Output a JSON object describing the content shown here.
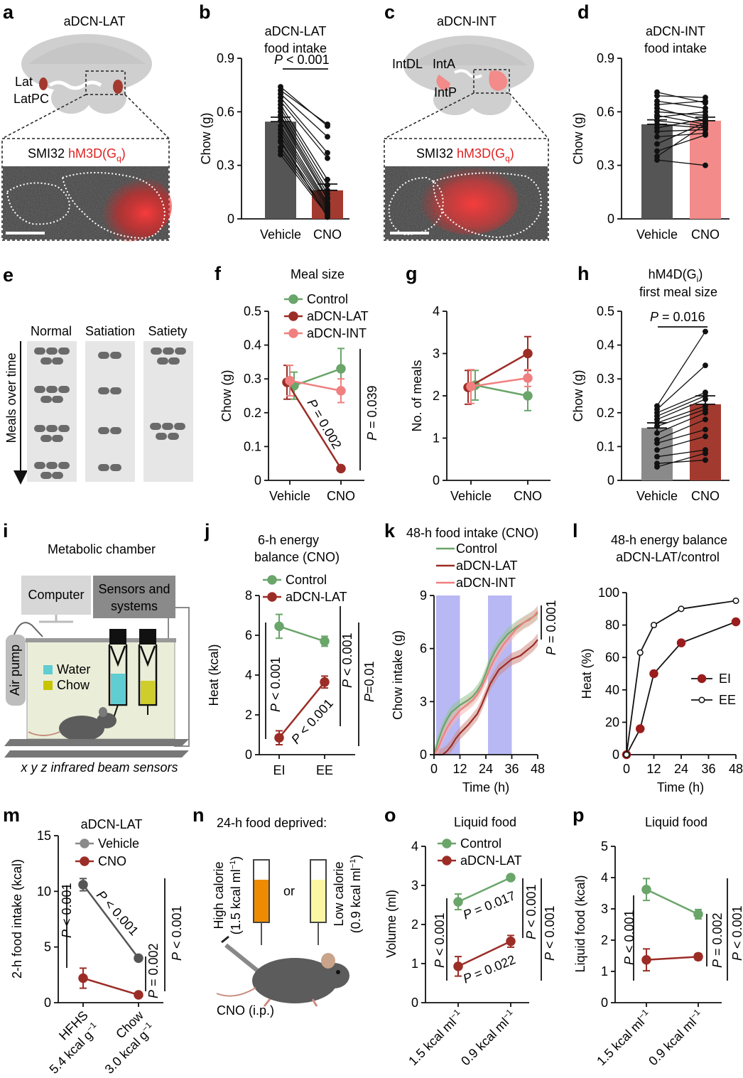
{
  "colors": {
    "vehicle": "#555555",
    "lat": "#a33a30",
    "int": "#f28b89",
    "control": "#6aa56a",
    "gray_bar": "#8a8a8a",
    "hm3d": "#e02020",
    "dark_line": "#9b2d26",
    "pink_line": "#f08080",
    "water": "#5fcdd2",
    "chow_box": "#c8c400",
    "beam_bg": "#eaeed8",
    "night": "#b8b8f4",
    "or": "#ef8b00"
  },
  "panels": {
    "a": {
      "letter": "a",
      "title": "aDCN-LAT",
      "lat": "Lat",
      "latpc": "LatPC",
      "stain1": "SMI32",
      "stain2": "hM3D(G",
      "stain_sub": "q",
      "stain3": ")"
    },
    "c": {
      "letter": "c",
      "title": "aDCN-INT",
      "intdl": "IntDL",
      "inta": "IntA",
      "intp": "IntP",
      "stain1": "SMI32",
      "stain2": "hM3D(G",
      "stain_sub": "q",
      "stain3": ")"
    },
    "e": {
      "letter": "e",
      "col1": "Normal",
      "col2": "Satiation",
      "col3": "Satiety",
      "ylabel": "Meals over time"
    },
    "i": {
      "letter": "i",
      "title": "Metabolic chamber",
      "computer": "Computer",
      "sensors1": "Sensors and",
      "sensors2": "systems",
      "pump": "Air pump",
      "water": "Water",
      "chow": "Chow",
      "beams": "x y z infrared beam sensors"
    },
    "n": {
      "letter": "n",
      "title": "24-h food deprived:",
      "high1": "High calorie",
      "high2": "(1.5 kcal ml",
      "low1": "Low calorie",
      "low2": "(0.9 kcal ml",
      "unit_sup": "−1",
      "close": ")",
      "or": "or",
      "cno": "CNO (i.p.)"
    }
  },
  "chart_data": [
    {
      "id": "b",
      "letter": "b",
      "type": "bar",
      "title": [
        "aDCN-LAT",
        "food intake"
      ],
      "categories": [
        "Vehicle",
        "CNO"
      ],
      "values": [
        0.545,
        0.16
      ],
      "errors": [
        0.025,
        0.035
      ],
      "ylabel": "Chow (g)",
      "ylim": [
        0,
        0.9
      ],
      "yticks": [
        "0",
        "0.3",
        "0.6",
        "0.9"
      ],
      "p": "P < 0.001",
      "pairs": [
        [
          0.74,
          0.52
        ],
        [
          0.72,
          0.53
        ],
        [
          0.7,
          0.46
        ],
        [
          0.68,
          0.37
        ],
        [
          0.66,
          0.34
        ],
        [
          0.64,
          0.22
        ],
        [
          0.62,
          0.19
        ],
        [
          0.6,
          0.16
        ],
        [
          0.58,
          0.14
        ],
        [
          0.57,
          0.12
        ],
        [
          0.55,
          0.11
        ],
        [
          0.52,
          0.09
        ],
        [
          0.5,
          0.08
        ],
        [
          0.48,
          0.07
        ],
        [
          0.46,
          0.06
        ],
        [
          0.43,
          0.05
        ],
        [
          0.4,
          0.04
        ],
        [
          0.38,
          0.03
        ],
        [
          0.36,
          0.02
        ],
        [
          0.44,
          0.01
        ]
      ]
    },
    {
      "id": "d",
      "letter": "d",
      "type": "bar",
      "title": [
        "aDCN-INT",
        "food intake"
      ],
      "categories": [
        "Vehicle",
        "CNO"
      ],
      "values": [
        0.53,
        0.55
      ],
      "errors": [
        0.025,
        0.02
      ],
      "ylabel": "Chow (g)",
      "ylim": [
        0,
        0.9
      ],
      "yticks": [
        "0",
        "0.3",
        "0.6",
        "0.9"
      ],
      "pairs": [
        [
          0.71,
          0.65
        ],
        [
          0.69,
          0.68
        ],
        [
          0.66,
          0.62
        ],
        [
          0.64,
          0.66
        ],
        [
          0.62,
          0.55
        ],
        [
          0.6,
          0.58
        ],
        [
          0.58,
          0.53
        ],
        [
          0.57,
          0.6
        ],
        [
          0.55,
          0.52
        ],
        [
          0.53,
          0.51
        ],
        [
          0.51,
          0.56
        ],
        [
          0.49,
          0.5
        ],
        [
          0.46,
          0.48
        ],
        [
          0.42,
          0.54
        ],
        [
          0.38,
          0.47
        ],
        [
          0.35,
          0.53
        ],
        [
          0.33,
          0.3
        ]
      ]
    },
    {
      "id": "f",
      "letter": "f",
      "type": "line",
      "title": [
        "Meal size"
      ],
      "categories": [
        "Vehicle",
        "CNO"
      ],
      "ylabel": "Chow (g)",
      "ylim": [
        0,
        0.5
      ],
      "yticks": [
        "0",
        "0.1",
        "0.2",
        "0.3",
        "0.4",
        "0.5"
      ],
      "legend": [
        "Control",
        "aDCN-LAT",
        "aDCN-INT"
      ],
      "series": [
        {
          "name": "Control",
          "values": [
            0.28,
            0.33
          ],
          "errors": [
            0.04,
            0.06
          ]
        },
        {
          "name": "aDCN-LAT",
          "values": [
            0.29,
            0.035
          ],
          "errors": [
            0.05,
            0.005
          ]
        },
        {
          "name": "aDCN-INT",
          "values": [
            0.295,
            0.265
          ],
          "errors": [
            0.045,
            0.035
          ]
        }
      ],
      "p1": "P = 0.002",
      "p2": "P = 0.039"
    },
    {
      "id": "g",
      "letter": "g",
      "type": "line",
      "categories": [
        "Vehicle",
        "CNO"
      ],
      "ylabel": "No. of meals",
      "ylim": [
        0,
        4
      ],
      "yticks": [
        "0",
        "1",
        "2",
        "3",
        "4"
      ],
      "series": [
        {
          "name": "Control",
          "values": [
            2.25,
            2.0
          ],
          "errors": [
            0.35,
            0.35
          ]
        },
        {
          "name": "aDCN-LAT",
          "values": [
            2.2,
            3.0
          ],
          "errors": [
            0.4,
            0.4
          ]
        },
        {
          "name": "aDCN-INT",
          "values": [
            2.22,
            2.42
          ],
          "errors": [
            0.4,
            0.2
          ]
        }
      ]
    },
    {
      "id": "h",
      "letter": "h",
      "type": "bar",
      "title": [
        "hM4D(G",
        "first meal size"
      ],
      "title_sub": "i",
      "title_close": ")",
      "categories": [
        "Vehicle",
        "CNO"
      ],
      "values": [
        0.155,
        0.225
      ],
      "errors": [
        0.015,
        0.025
      ],
      "ylabel": "Chow (g)",
      "ylim": [
        0,
        0.5
      ],
      "yticks": [
        "0",
        "0.1",
        "0.2",
        "0.3",
        "0.4",
        "0.5"
      ],
      "p": "P = 0.016",
      "pairs": [
        [
          0.22,
          0.44
        ],
        [
          0.21,
          0.34
        ],
        [
          0.2,
          0.26
        ],
        [
          0.19,
          0.25
        ],
        [
          0.18,
          0.24
        ],
        [
          0.17,
          0.22
        ],
        [
          0.16,
          0.21
        ],
        [
          0.14,
          0.2
        ],
        [
          0.12,
          0.18
        ],
        [
          0.11,
          0.15
        ],
        [
          0.09,
          0.13
        ],
        [
          0.07,
          0.09
        ],
        [
          0.05,
          0.06
        ],
        [
          0.04,
          0.08
        ]
      ]
    },
    {
      "id": "j",
      "letter": "j",
      "type": "line",
      "title": [
        "6-h energy",
        "balance (CNO)"
      ],
      "categories": [
        "EI",
        "EE"
      ],
      "ylabel": "Heat (kcal)",
      "ylim": [
        0,
        8
      ],
      "yticks": [
        "0",
        "2",
        "4",
        "6",
        "8"
      ],
      "legend": [
        "Control",
        "aDCN-LAT"
      ],
      "series": [
        {
          "name": "Control",
          "values": [
            6.45,
            5.7
          ],
          "errors": [
            0.6,
            0.25
          ]
        },
        {
          "name": "aDCN-LAT",
          "values": [
            0.85,
            3.65
          ],
          "errors": [
            0.35,
            0.3
          ]
        }
      ],
      "p1": "P < 0.001",
      "p2": "P < 0.001",
      "p3": "P < 0.001",
      "p4": "P=0.01"
    },
    {
      "id": "k",
      "letter": "k",
      "type": "area",
      "title": [
        "48-h food intake (CNO)"
      ],
      "xlabel": "Time (h)",
      "ylabel": "Chow intake (g)",
      "xlim": [
        0,
        48
      ],
      "ylim": [
        0,
        9
      ],
      "xticks": [
        "0",
        "12",
        "24",
        "36",
        "48"
      ],
      "yticks": [
        "0",
        "3",
        "6",
        "9"
      ],
      "legend": [
        "Control",
        "aDCN-LAT",
        "aDCN-INT"
      ],
      "night_bands": [
        [
          1,
          12
        ],
        [
          25,
          36
        ]
      ],
      "p": "P = 0.001",
      "series": [
        {
          "name": "Control",
          "x": [
            0,
            2,
            4,
            6,
            8,
            10,
            12,
            14,
            16,
            18,
            20,
            22,
            24,
            26,
            28,
            30,
            32,
            34,
            36,
            38,
            40,
            42,
            44,
            46,
            48
          ],
          "values": [
            0,
            0.8,
            1.5,
            2.0,
            2.4,
            2.6,
            2.8,
            2.95,
            3.1,
            3.3,
            3.6,
            4.0,
            4.6,
            5.3,
            5.8,
            6.2,
            6.5,
            6.8,
            7.0,
            7.2,
            7.35,
            7.5,
            7.65,
            7.8,
            8.0
          ]
        },
        {
          "name": "aDCN-LAT",
          "x": [
            0,
            2,
            4,
            6,
            8,
            10,
            12,
            14,
            16,
            18,
            20,
            22,
            24,
            26,
            28,
            30,
            32,
            34,
            36,
            38,
            40,
            42,
            44,
            46,
            48
          ],
          "values": [
            0,
            0,
            0,
            0.2,
            0.5,
            0.9,
            1.2,
            1.45,
            1.7,
            2.0,
            2.3,
            2.8,
            3.4,
            4.0,
            4.4,
            4.8,
            5.0,
            5.2,
            5.4,
            5.5,
            5.6,
            5.8,
            6.0,
            6.2,
            6.5
          ]
        },
        {
          "name": "aDCN-INT",
          "x": [
            0,
            2,
            4,
            6,
            8,
            10,
            12,
            14,
            16,
            18,
            20,
            22,
            24,
            26,
            28,
            30,
            32,
            34,
            36,
            38,
            40,
            42,
            44,
            46,
            48
          ],
          "values": [
            0,
            0.4,
            1.0,
            1.5,
            1.9,
            2.2,
            2.5,
            2.7,
            2.9,
            3.1,
            3.4,
            3.8,
            4.3,
            4.9,
            5.4,
            5.8,
            6.2,
            6.5,
            6.8,
            7.1,
            7.3,
            7.5,
            7.6,
            7.8,
            8.1
          ]
        }
      ]
    },
    {
      "id": "l",
      "letter": "l",
      "type": "line",
      "title": [
        "48-h energy balance",
        "aDCN-LAT/control"
      ],
      "xlabel": "Time (h)",
      "ylabel": "Heat (%)",
      "xlim": [
        0,
        48
      ],
      "ylim": [
        0,
        100
      ],
      "xticks": [
        "0",
        "12",
        "24",
        "36",
        "48"
      ],
      "yticks": [
        "0",
        "20",
        "40",
        "60",
        "80",
        "100"
      ],
      "legend": [
        "EI",
        "EE"
      ],
      "series": [
        {
          "name": "EI",
          "x": [
            0,
            6,
            12,
            24,
            48
          ],
          "values": [
            0,
            16,
            50,
            69,
            82
          ]
        },
        {
          "name": "EE",
          "x": [
            0,
            6,
            12,
            24,
            48
          ],
          "values": [
            0,
            63,
            80,
            90,
            95
          ]
        }
      ]
    },
    {
      "id": "m",
      "letter": "m",
      "type": "line",
      "title": [
        "aDCN-LAT"
      ],
      "categories": [
        "HFHS",
        "Chow"
      ],
      "cat_units": [
        "5.4 kcal g",
        "3.0 kcal g"
      ],
      "unit_sup": "−1",
      "ylabel": "2-h food intake (kcal)",
      "ylim": [
        0,
        15
      ],
      "yticks": [
        "0",
        "5",
        "10",
        "15"
      ],
      "legend": [
        "Vehicle",
        "CNO"
      ],
      "series": [
        {
          "name": "Vehicle",
          "values": [
            10.6,
            4.0
          ],
          "errors": [
            0.55,
            0.2
          ]
        },
        {
          "name": "CNO",
          "values": [
            2.2,
            0.7
          ],
          "errors": [
            0.9,
            0.2
          ]
        }
      ],
      "p1": "P < 0.001",
      "p2": "P < 0.001",
      "p3": "P = 0.002",
      "p4": "P < 0.001"
    },
    {
      "id": "o",
      "letter": "o",
      "type": "line",
      "title": [
        "Liquid food"
      ],
      "categories": [
        "1.5 kcal ml",
        "0.9 kcal ml"
      ],
      "unit_sup": "−1",
      "ylabel": "Volume (ml)",
      "ylim": [
        0,
        4
      ],
      "yticks": [
        "0",
        "1",
        "2",
        "3",
        "4"
      ],
      "legend": [
        "Control",
        "aDCN-LAT"
      ],
      "series": [
        {
          "name": "Control",
          "values": [
            2.58,
            3.2
          ],
          "errors": [
            0.2,
            0.06
          ]
        },
        {
          "name": "aDCN-LAT",
          "values": [
            0.93,
            1.57
          ],
          "errors": [
            0.25,
            0.15
          ]
        }
      ],
      "p1": "P < 0.001",
      "p2": "P = 0.017",
      "p3": "P = 0.022",
      "p4": "P < 0.001",
      "p5": "P < 0.001"
    },
    {
      "id": "p",
      "letter": "p",
      "type": "line",
      "title": [
        "Liquid food"
      ],
      "categories": [
        "1.5 kcal ml",
        "0.9 kcal ml"
      ],
      "unit_sup": "−1",
      "ylabel": "Liquid food (kcal)",
      "ylim": [
        0,
        5
      ],
      "yticks": [
        "0",
        "1",
        "2",
        "3",
        "4",
        "5"
      ],
      "series": [
        {
          "name": "Control",
          "values": [
            3.62,
            2.83
          ],
          "errors": [
            0.35,
            0.15
          ]
        },
        {
          "name": "aDCN-LAT",
          "values": [
            1.37,
            1.47
          ],
          "errors": [
            0.35,
            0.1
          ]
        }
      ],
      "p1": "P < 0.001",
      "p2": "P = 0.002",
      "p3": "P < 0.001"
    }
  ]
}
